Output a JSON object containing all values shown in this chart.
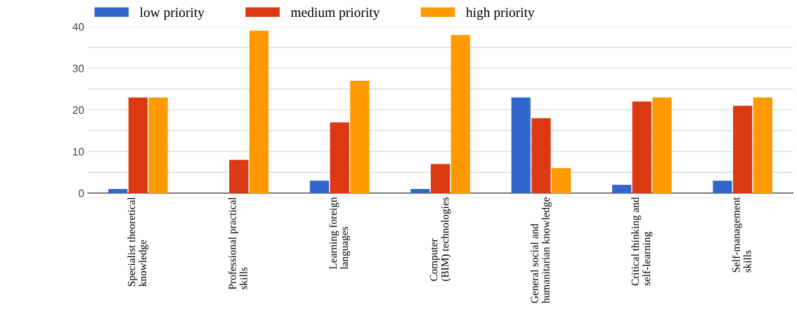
{
  "chart_data": {
    "type": "bar",
    "categories": [
      "Specialist theoretical\nknowledge",
      "Professional practical\nskills",
      "Learning foreign\nlanguages",
      "Computer\n(BIM) technologies",
      "General social and\nhumanitarian knowledge",
      "Critical thinking and\nself-learning",
      "Self-management\nskills"
    ],
    "series": [
      {
        "name": "low priority",
        "color": "#3366cc",
        "values": [
          1,
          0,
          3,
          1,
          23,
          2,
          3
        ]
      },
      {
        "name": "medium priority",
        "color": "#dc3912",
        "values": [
          23,
          8,
          17,
          7,
          18,
          22,
          21
        ]
      },
      {
        "name": "high priority",
        "color": "#ff9900",
        "values": [
          23,
          39,
          27,
          38,
          6,
          23,
          23
        ]
      }
    ],
    "ylim": [
      0,
      40
    ],
    "yticks": [
      0,
      {
        "value": 5,
        "label": null
      },
      10,
      {
        "value": 15,
        "label": null
      },
      20,
      {
        "value": 25,
        "label": null
      },
      30,
      {
        "value": 35,
        "label": null
      },
      40
    ],
    "grid": "y",
    "legend": "top left"
  }
}
